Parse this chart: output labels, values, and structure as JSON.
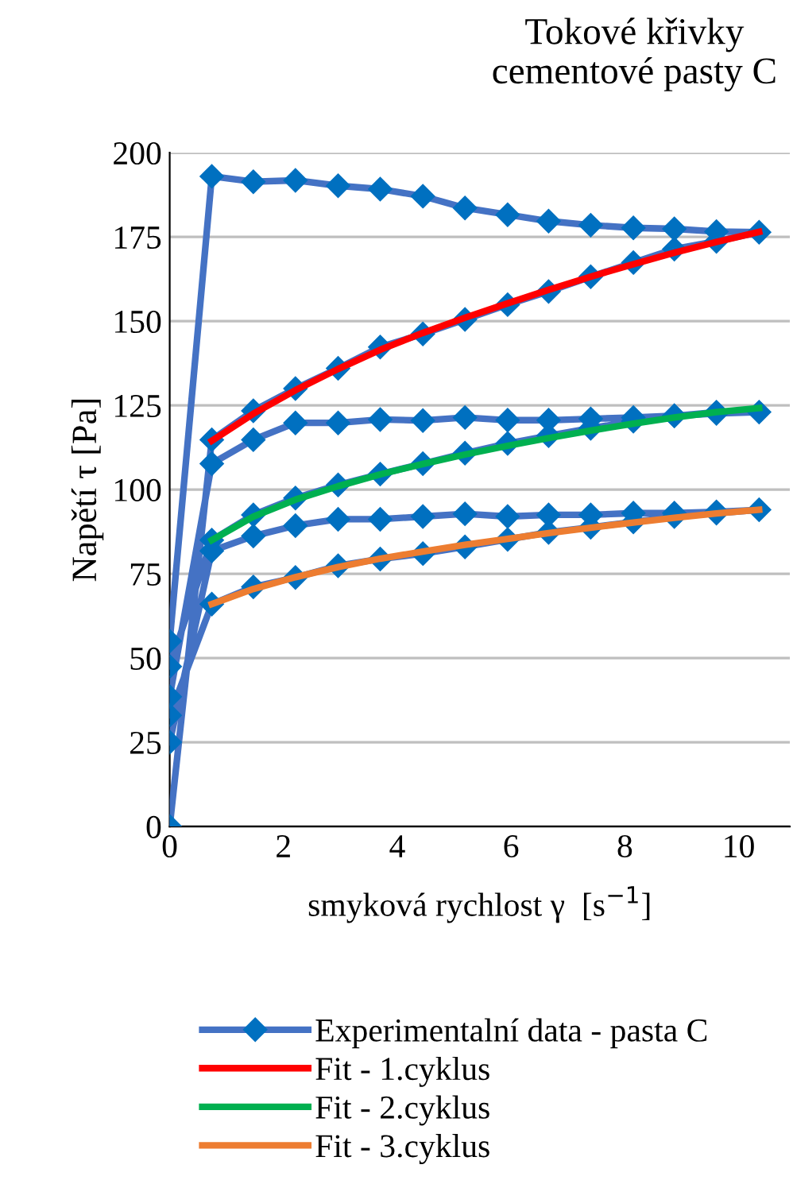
{
  "chart_data": {
    "type": "line",
    "title": "Tokové křivky cementové pasty C",
    "xlabel": "smyková rychlost γ  [s$^{−1}$]",
    "ylabel": "Napětí τ [Pa]",
    "xlim": [
      0,
      10.9
    ],
    "xticks": [
      0,
      2,
      4,
      6,
      8,
      10
    ],
    "ylim": [
      0,
      200
    ],
    "yticks": [
      0,
      25,
      50,
      75,
      100,
      125,
      150,
      175,
      200
    ],
    "grid": "y",
    "legend": "bottom",
    "series": [
      {
        "name": "Experimentalní data - pasta C",
        "color": "#4472c4",
        "marker": "diamond",
        "x": [
          0,
          0.74,
          1.47,
          2.21,
          2.96,
          3.7,
          4.45,
          5.19,
          5.94,
          6.66,
          7.4,
          8.15,
          8.87,
          9.61,
          10.36,
          9.61,
          8.87,
          8.15,
          7.4,
          6.66,
          5.94,
          5.19,
          4.45,
          3.7,
          2.96,
          2.21,
          1.47,
          0.74,
          0,
          0,
          0.74,
          1.47,
          2.21,
          2.96,
          3.7,
          4.45,
          5.19,
          5.94,
          6.66,
          7.4,
          8.15,
          8.87,
          9.61,
          10.36,
          9.61,
          8.87,
          8.15,
          7.4,
          6.66,
          5.94,
          5.19,
          4.45,
          3.7,
          2.96,
          2.21,
          1.47,
          0.74,
          0,
          0,
          0.74,
          1.47,
          2.21,
          2.96,
          3.7,
          4.45,
          5.19,
          5.94,
          6.66,
          7.4,
          8.15,
          8.87,
          9.61,
          10.36,
          9.61,
          8.87,
          8.15,
          7.4,
          6.66,
          5.94,
          5.19,
          4.45,
          3.7,
          2.96,
          2.21,
          1.47,
          0.74,
          0
        ],
        "values": [
          0,
          114.8,
          123.4,
          130,
          136,
          142.3,
          146.2,
          150.5,
          154.9,
          158.8,
          163.2,
          167.4,
          171.4,
          173.7,
          176.4,
          176.6,
          177.4,
          177.7,
          178.5,
          179.7,
          181.6,
          183.6,
          187.1,
          189.2,
          190.2,
          191.8,
          191.4,
          193,
          55,
          47.5,
          85,
          92.5,
          97.5,
          101.4,
          104.6,
          107.7,
          110.8,
          113.7,
          116,
          118.2,
          120.3,
          121.9,
          123,
          123,
          122.6,
          121.9,
          121.4,
          121,
          120.6,
          120.6,
          121.4,
          120.5,
          120.8,
          119.8,
          119.8,
          114.8,
          107.7,
          38.5,
          33,
          66,
          71.1,
          73.9,
          77.4,
          79.4,
          81,
          83,
          85.2,
          87.3,
          88.8,
          90.4,
          92,
          93,
          94,
          93.4,
          93,
          93,
          92.5,
          92.5,
          92,
          92.8,
          92,
          91.2,
          91.2,
          89.3,
          86.2,
          81.8,
          25
        ]
      },
      {
        "name": "Fit - 1.cyklus",
        "color": "#ff0000",
        "marker": "none",
        "x": [
          0.74,
          1.47,
          2.21,
          2.96,
          3.7,
          4.45,
          5.19,
          5.94,
          6.66,
          7.4,
          8.15,
          8.87,
          9.61,
          10.36
        ],
        "values": [
          114.5,
          122.5,
          129.5,
          135.8,
          141.5,
          146.5,
          151,
          155.3,
          159.3,
          163.2,
          166.9,
          170.3,
          173.5,
          176.5
        ]
      },
      {
        "name": "Fit - 2.cyklus",
        "color": "#00b050",
        "marker": "none",
        "x": [
          0.74,
          1.47,
          2.21,
          2.96,
          3.7,
          4.45,
          5.19,
          5.94,
          6.66,
          7.4,
          8.15,
          8.87,
          9.61,
          10.36
        ],
        "values": [
          85,
          92,
          97,
          101,
          104.5,
          107.6,
          110.4,
          113,
          115.3,
          117.5,
          119.6,
          121.4,
          123,
          124.2
        ]
      },
      {
        "name": "Fit - 3.cyklus",
        "color": "#ed7d31",
        "marker": "none",
        "x": [
          0.74,
          1.47,
          2.21,
          2.96,
          3.7,
          4.45,
          5.19,
          5.94,
          6.66,
          7.4,
          8.15,
          8.87,
          9.61,
          10.36
        ],
        "values": [
          66,
          70.5,
          74,
          77,
          79.5,
          81.6,
          83.6,
          85.4,
          87.1,
          88.7,
          90.2,
          91.6,
          92.9,
          94
        ]
      }
    ]
  }
}
